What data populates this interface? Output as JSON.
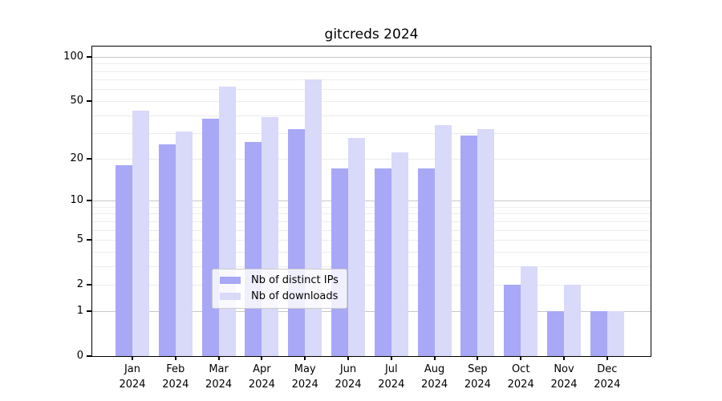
{
  "title": "gitcreds 2024",
  "colors": {
    "bar_distinct_ips": "#a8a8f7",
    "bar_downloads": "#d9d9fa",
    "grid_major": "#c6c6c6",
    "grid_minor": "#ececec",
    "spine": "#000000",
    "legend_border": "#cccccc",
    "background": "#ffffff"
  },
  "chart_data": {
    "type": "bar",
    "title": "gitcreds 2024",
    "categories": [
      "Jan 2024",
      "Feb 2024",
      "Mar 2024",
      "Apr 2024",
      "May 2024",
      "Jun 2024",
      "Jul 2024",
      "Aug 2024",
      "Sep 2024",
      "Oct 2024",
      "Nov 2024",
      "Dec 2024"
    ],
    "months": [
      "Jan",
      "Feb",
      "Mar",
      "Apr",
      "May",
      "Jun",
      "Jul",
      "Aug",
      "Sep",
      "Oct",
      "Nov",
      "Dec"
    ],
    "year_label": "2024",
    "series": [
      {
        "name": "Nb of distinct IPs",
        "color": "#a8a8f7",
        "values": [
          18,
          25,
          38,
          26,
          32,
          17,
          17,
          17,
          29,
          2,
          1,
          1
        ]
      },
      {
        "name": "Nb of downloads",
        "color": "#d9d9fa",
        "values": [
          43,
          31,
          63,
          39,
          70,
          28,
          22,
          34,
          32,
          3,
          2,
          1
        ]
      }
    ],
    "y_axis": {
      "scale": "log1p",
      "tick_labels": [
        "100",
        "50",
        "20",
        "10",
        "5",
        "2",
        "1",
        "0"
      ],
      "tick_values": [
        100,
        50,
        20,
        10,
        5,
        2,
        1,
        0
      ],
      "major_gridlines": [
        1,
        10,
        100
      ],
      "minor_gridlines": [
        2,
        3,
        4,
        5,
        6,
        7,
        8,
        9,
        20,
        30,
        40,
        50,
        60,
        70,
        80,
        90
      ],
      "ylim": [
        0,
        118
      ]
    },
    "xlabel": "",
    "ylabel": "",
    "grid": true,
    "legend": {
      "position": "lower center inside",
      "entries": [
        "Nb of distinct IPs",
        "Nb of downloads"
      ]
    }
  }
}
